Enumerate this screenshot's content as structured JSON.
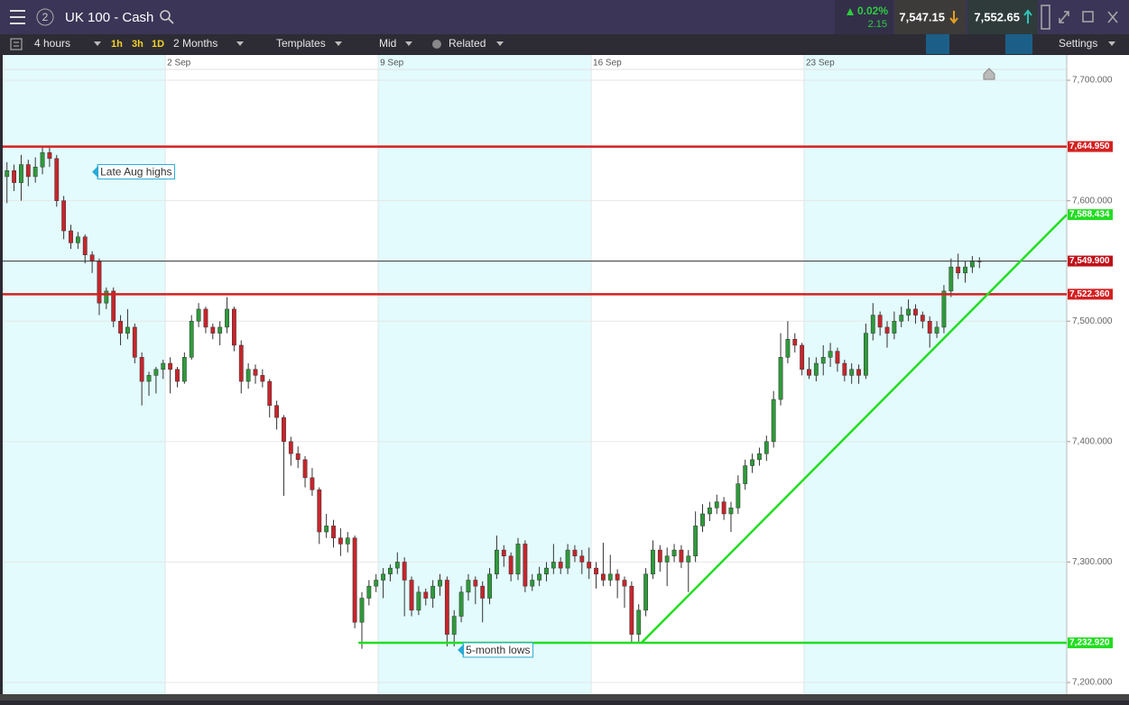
{
  "header": {
    "badge": "2",
    "title": "UK 100 - Cash",
    "change_pct": "0.02%",
    "change": "2.15",
    "sell": "7,547.15",
    "buy": "7,552.65"
  },
  "toolbar": {
    "interval": "4 hours",
    "quick": [
      "1h",
      "3h",
      "1D"
    ],
    "range": "2 Months",
    "templates": "Templates",
    "price": "Mid",
    "related": "Related",
    "settings": "Settings"
  },
  "chart_data": {
    "type": "candlestick",
    "up_color": "#2e9a3a",
    "down_color": "#c8242b",
    "xlim": [
      -0.6,
      149.3
    ],
    "xticks": [
      {
        "value": 22.3,
        "label": "2 Sep"
      },
      {
        "value": 52.3,
        "label": "9 Sep"
      },
      {
        "value": 82.3,
        "label": "16 Sep"
      },
      {
        "value": 112.3,
        "label": "23 Sep"
      }
    ],
    "ylim": [
      7190.3,
      7709
    ],
    "yticks": [
      {
        "value": 7200,
        "label": "7,200.000"
      },
      {
        "value": 7300,
        "label": "7,300.000"
      },
      {
        "value": 7400,
        "label": "7,400.000"
      },
      {
        "value": 7500,
        "label": "7,500.000"
      },
      {
        "value": 7600,
        "label": "7,600.000"
      },
      {
        "value": 7700,
        "label": "7,700.000"
      }
    ],
    "grid": true,
    "candles": [
      [
        7620,
        7632,
        7598,
        7625
      ],
      [
        7625,
        7630,
        7608,
        7615
      ],
      [
        7615,
        7638,
        7600,
        7630
      ],
      [
        7630,
        7634,
        7612,
        7620
      ],
      [
        7620,
        7636,
        7615,
        7628
      ],
      [
        7628,
        7645,
        7622,
        7640
      ],
      [
        7640,
        7644,
        7628,
        7635
      ],
      [
        7635,
        7638,
        7595,
        7600
      ],
      [
        7600,
        7604,
        7568,
        7575
      ],
      [
        7575,
        7580,
        7560,
        7565
      ],
      [
        7565,
        7574,
        7560,
        7570
      ],
      [
        7570,
        7572,
        7548,
        7555
      ],
      [
        7555,
        7558,
        7540,
        7550
      ],
      [
        7550,
        7552,
        7505,
        7515
      ],
      [
        7515,
        7528,
        7510,
        7525
      ],
      [
        7525,
        7528,
        7495,
        7500
      ],
      [
        7500,
        7505,
        7480,
        7490
      ],
      [
        7490,
        7510,
        7485,
        7495
      ],
      [
        7495,
        7498,
        7465,
        7470
      ],
      [
        7470,
        7474,
        7430,
        7450
      ],
      [
        7450,
        7458,
        7438,
        7455
      ],
      [
        7455,
        7462,
        7440,
        7460
      ],
      [
        7460,
        7468,
        7452,
        7465
      ],
      [
        7465,
        7470,
        7440,
        7460
      ],
      [
        7460,
        7462,
        7445,
        7450
      ],
      [
        7450,
        7474,
        7448,
        7470
      ],
      [
        7470,
        7505,
        7468,
        7500
      ],
      [
        7500,
        7515,
        7495,
        7510
      ],
      [
        7510,
        7512,
        7490,
        7495
      ],
      [
        7495,
        7498,
        7485,
        7490
      ],
      [
        7490,
        7500,
        7480,
        7495
      ],
      [
        7495,
        7520,
        7490,
        7510
      ],
      [
        7510,
        7512,
        7475,
        7480
      ],
      [
        7480,
        7484,
        7440,
        7450
      ],
      [
        7450,
        7465,
        7444,
        7460
      ],
      [
        7460,
        7464,
        7448,
        7455
      ],
      [
        7455,
        7460,
        7445,
        7450
      ],
      [
        7450,
        7452,
        7420,
        7430
      ],
      [
        7430,
        7434,
        7410,
        7420
      ],
      [
        7420,
        7422,
        7355,
        7400
      ],
      [
        7400,
        7404,
        7380,
        7390
      ],
      [
        7390,
        7396,
        7378,
        7385
      ],
      [
        7385,
        7388,
        7362,
        7370
      ],
      [
        7370,
        7378,
        7355,
        7360
      ],
      [
        7360,
        7362,
        7315,
        7325
      ],
      [
        7325,
        7340,
        7320,
        7330
      ],
      [
        7330,
        7335,
        7312,
        7320
      ],
      [
        7320,
        7328,
        7305,
        7315
      ],
      [
        7315,
        7325,
        7308,
        7320
      ],
      [
        7320,
        7322,
        7245,
        7250
      ],
      [
        7250,
        7275,
        7228,
        7270
      ],
      [
        7270,
        7285,
        7264,
        7280
      ],
      [
        7280,
        7290,
        7275,
        7285
      ],
      [
        7285,
        7295,
        7270,
        7290
      ],
      [
        7290,
        7298,
        7284,
        7295
      ],
      [
        7295,
        7308,
        7290,
        7300
      ],
      [
        7300,
        7304,
        7255,
        7285
      ],
      [
        7285,
        7288,
        7255,
        7260
      ],
      [
        7260,
        7280,
        7256,
        7275
      ],
      [
        7275,
        7278,
        7264,
        7270
      ],
      [
        7270,
        7285,
        7262,
        7280
      ],
      [
        7280,
        7290,
        7272,
        7285
      ],
      [
        7285,
        7288,
        7230,
        7240
      ],
      [
        7240,
        7260,
        7230,
        7255
      ],
      [
        7255,
        7280,
        7250,
        7275
      ],
      [
        7275,
        7290,
        7268,
        7285
      ],
      [
        7285,
        7288,
        7265,
        7280
      ],
      [
        7280,
        7284,
        7250,
        7270
      ],
      [
        7270,
        7295,
        7265,
        7290
      ],
      [
        7290,
        7322,
        7286,
        7310
      ],
      [
        7310,
        7314,
        7296,
        7305
      ],
      [
        7305,
        7308,
        7284,
        7290
      ],
      [
        7290,
        7320,
        7285,
        7315
      ],
      [
        7315,
        7318,
        7275,
        7280
      ],
      [
        7280,
        7290,
        7276,
        7285
      ],
      [
        7285,
        7296,
        7280,
        7290
      ],
      [
        7290,
        7300,
        7284,
        7295
      ],
      [
        7295,
        7315,
        7290,
        7300
      ],
      [
        7300,
        7304,
        7290,
        7295
      ],
      [
        7295,
        7315,
        7290,
        7310
      ],
      [
        7310,
        7314,
        7300,
        7305
      ],
      [
        7305,
        7310,
        7290,
        7300
      ],
      [
        7300,
        7312,
        7286,
        7295
      ],
      [
        7295,
        7300,
        7278,
        7290
      ],
      [
        7290,
        7316,
        7280,
        7285
      ],
      [
        7285,
        7306,
        7280,
        7290
      ],
      [
        7290,
        7294,
        7270,
        7285
      ],
      [
        7285,
        7288,
        7262,
        7280
      ],
      [
        7280,
        7284,
        7233,
        7240
      ],
      [
        7240,
        7265,
        7233,
        7260
      ],
      [
        7260,
        7295,
        7255,
        7290
      ],
      [
        7290,
        7318,
        7286,
        7310
      ],
      [
        7310,
        7314,
        7292,
        7300
      ],
      [
        7300,
        7312,
        7280,
        7305
      ],
      [
        7305,
        7315,
        7300,
        7310
      ],
      [
        7310,
        7314,
        7295,
        7300
      ],
      [
        7300,
        7310,
        7275,
        7305
      ],
      [
        7305,
        7342,
        7300,
        7330
      ],
      [
        7330,
        7348,
        7325,
        7340
      ],
      [
        7340,
        7350,
        7334,
        7345
      ],
      [
        7345,
        7356,
        7340,
        7350
      ],
      [
        7350,
        7354,
        7335,
        7340
      ],
      [
        7340,
        7350,
        7325,
        7345
      ],
      [
        7345,
        7372,
        7340,
        7365
      ],
      [
        7365,
        7385,
        7360,
        7380
      ],
      [
        7380,
        7390,
        7374,
        7385
      ],
      [
        7385,
        7395,
        7380,
        7390
      ],
      [
        7390,
        7405,
        7384,
        7400
      ],
      [
        7400,
        7442,
        7395,
        7435
      ],
      [
        7435,
        7490,
        7430,
        7470
      ],
      [
        7470,
        7500,
        7465,
        7485
      ],
      [
        7485,
        7490,
        7474,
        7480
      ],
      [
        7480,
        7482,
        7455,
        7460
      ],
      [
        7460,
        7470,
        7452,
        7455
      ],
      [
        7455,
        7470,
        7450,
        7465
      ],
      [
        7465,
        7480,
        7455,
        7470
      ],
      [
        7470,
        7482,
        7462,
        7475
      ],
      [
        7475,
        7478,
        7458,
        7465
      ],
      [
        7465,
        7468,
        7450,
        7455
      ],
      [
        7455,
        7465,
        7448,
        7460
      ],
      [
        7460,
        7464,
        7448,
        7455
      ],
      [
        7455,
        7498,
        7452,
        7490
      ],
      [
        7490,
        7515,
        7484,
        7505
      ],
      [
        7505,
        7508,
        7488,
        7495
      ],
      [
        7495,
        7500,
        7478,
        7490
      ],
      [
        7490,
        7508,
        7485,
        7500
      ],
      [
        7500,
        7512,
        7495,
        7505
      ],
      [
        7505,
        7518,
        7500,
        7510
      ],
      [
        7510,
        7514,
        7498,
        7505
      ],
      [
        7505,
        7508,
        7494,
        7500
      ],
      [
        7500,
        7504,
        7478,
        7490
      ],
      [
        7490,
        7500,
        7486,
        7495
      ],
      [
        7495,
        7530,
        7490,
        7525
      ],
      [
        7525,
        7552,
        7520,
        7545
      ],
      [
        7545,
        7556,
        7535,
        7540
      ],
      [
        7540,
        7550,
        7532,
        7545
      ],
      [
        7545,
        7554,
        7540,
        7550
      ],
      [
        7550,
        7553,
        7544,
        7549.9
      ]
    ],
    "levels": [
      {
        "value": 7644.95,
        "label": "7,644.950",
        "color": "#d42020"
      },
      {
        "value": 7522.36,
        "label": "7,522.360",
        "color": "#d42020"
      },
      {
        "value": 7549.9,
        "label": "7,549.900",
        "color": "#333333",
        "label_color": "#c0121b"
      },
      {
        "value": 7232.92,
        "label": "7,232.920",
        "color": "#22dd22",
        "from": 49
      }
    ],
    "trend_line": {
      "from": 89,
      "start_value": 7232.92,
      "end_value": 7588.434,
      "label": "7,588.434",
      "color": "#22dd22"
    },
    "annotations": [
      {
        "text": "Late Aug highs",
        "index": 12,
        "value": 7624
      },
      {
        "text": "5-month lows",
        "index": 63.5,
        "value": 7227
      }
    ]
  }
}
